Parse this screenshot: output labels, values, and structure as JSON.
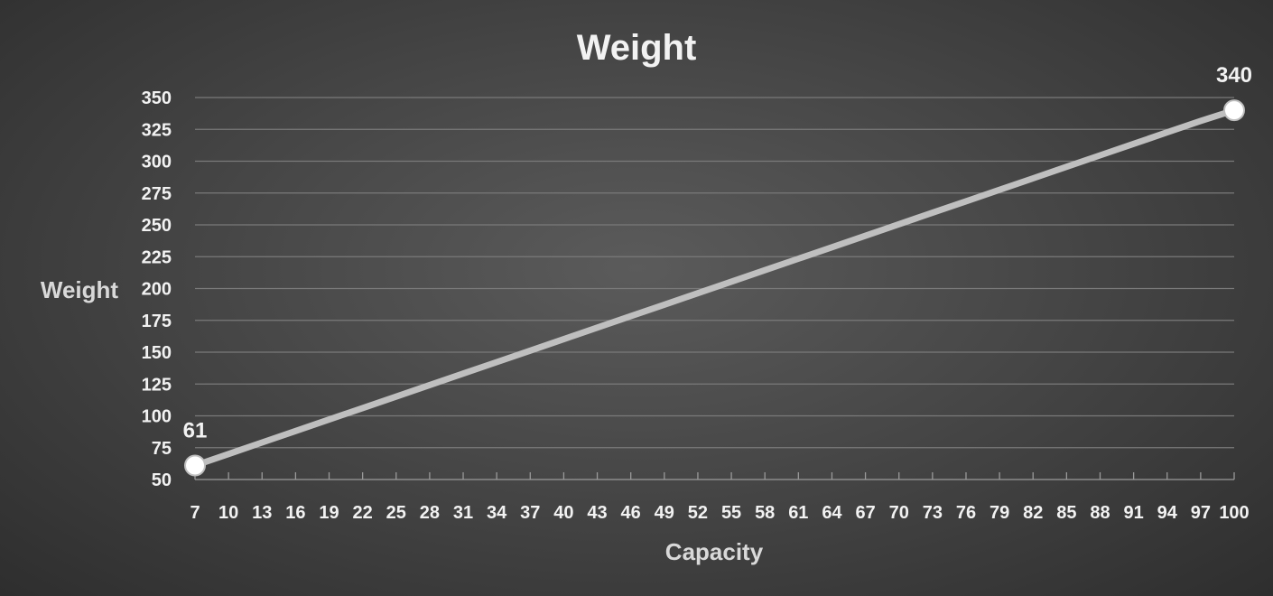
{
  "chart_data": {
    "type": "line",
    "title": "Weight",
    "xlabel": "Capacity",
    "ylabel": "Weight",
    "x": [
      7,
      10,
      13,
      16,
      19,
      22,
      25,
      28,
      31,
      34,
      37,
      40,
      43,
      46,
      49,
      52,
      55,
      58,
      61,
      64,
      67,
      70,
      73,
      76,
      79,
      82,
      85,
      88,
      91,
      94,
      97,
      100
    ],
    "series": [
      {
        "name": "Weight",
        "values": [
          61,
          70,
          79.1,
          88.1,
          97.1,
          106.1,
          115.1,
          124.2,
          133.2,
          142.2,
          151.2,
          160.2,
          169.3,
          178.3,
          187.3,
          196.3,
          205.4,
          214.4,
          223.4,
          232.4,
          241.4,
          250.5,
          259.5,
          268.5,
          277.5,
          286.5,
          295.6,
          304.6,
          313.6,
          322.6,
          331.6,
          340
        ],
        "color": "#bfbfbf"
      }
    ],
    "ylim": [
      50,
      350
    ],
    "yticks": [
      50,
      75,
      100,
      125,
      150,
      175,
      200,
      225,
      250,
      275,
      300,
      325,
      350
    ],
    "grid": true,
    "legend": "none",
    "annotations": [
      {
        "x": 7,
        "label": "61"
      },
      {
        "x": 100,
        "label": "340"
      }
    ]
  }
}
